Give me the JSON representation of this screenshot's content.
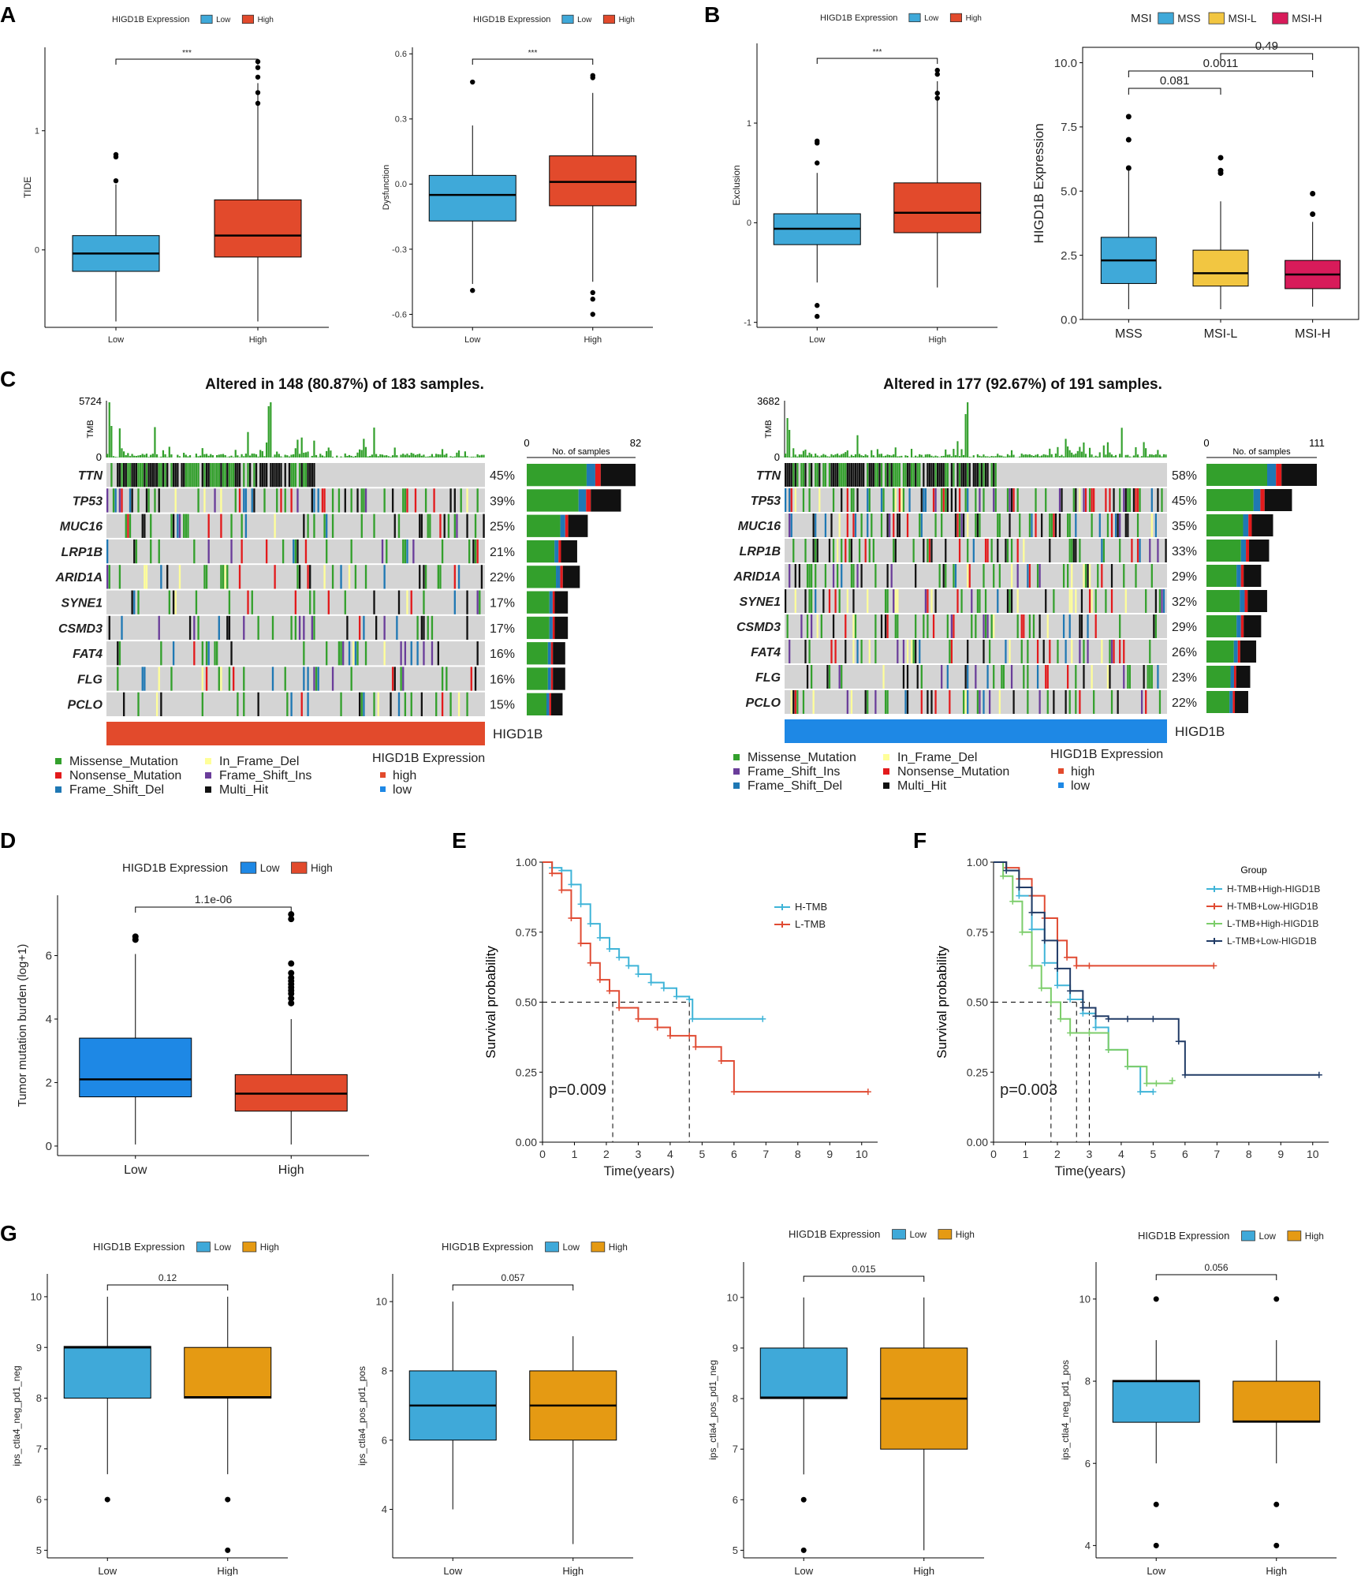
{
  "panel_labels": [
    "A",
    "B",
    "C",
    "D",
    "E",
    "F",
    "G"
  ],
  "colors": {
    "low_blue": "#3fa9d9",
    "high_red": "#e24a2c",
    "msi_l": "#f2c641",
    "msi_h": "#d81b5a",
    "d_blue": "#1e88e5",
    "orange": "#e59a13",
    "missense": "#33a02c",
    "nonsense": "#e31a1c",
    "frameshift_del": "#1f78b4",
    "inframe_del": "#ffff99",
    "frameshift_ins": "#6a3d9a",
    "multi": "#111111",
    "km_blue": "#3fb4d8",
    "km_red": "#e04b33",
    "km_green": "#7ccd6a",
    "km_navy": "#213b66"
  },
  "chart_data": [
    {
      "id": "A1",
      "type": "box",
      "legend_title": "HIGD1B Expression",
      "legend": [
        "Low",
        "High"
      ],
      "categories": [
        "Low",
        "High"
      ],
      "ylabel": "TIDE",
      "yticks": [
        "1",
        "0"
      ],
      "ylim": [
        -0.65,
        1.7
      ],
      "signif": "***",
      "boxes": [
        {
          "q1": -0.18,
          "med": -0.03,
          "q3": 0.12,
          "lo": -0.6,
          "hi": 0.55,
          "out": [
            0.8,
            0.78,
            0.58
          ]
        },
        {
          "q1": -0.06,
          "med": 0.12,
          "q3": 0.42,
          "lo": -0.6,
          "hi": 1.4,
          "out": [
            1.58,
            1.53,
            1.45,
            1.32,
            1.23
          ]
        }
      ]
    },
    {
      "id": "A2",
      "type": "box",
      "legend_title": "HIGD1B Expression",
      "legend": [
        "Low",
        "High"
      ],
      "categories": [
        "Low",
        "High"
      ],
      "ylabel": "Dysfunction",
      "yticks": [
        "0.6",
        "0.3",
        "0.0",
        "-0.3",
        "-0.6"
      ],
      "ylim": [
        -0.66,
        0.63
      ],
      "signif": "***",
      "boxes": [
        {
          "q1": -0.17,
          "med": -0.05,
          "q3": 0.04,
          "lo": -0.46,
          "hi": 0.27,
          "out": [
            0.47,
            -0.49
          ]
        },
        {
          "q1": -0.1,
          "med": 0.01,
          "q3": 0.13,
          "lo": -0.45,
          "hi": 0.42,
          "out": [
            0.5,
            0.49,
            -0.5,
            -0.53,
            -0.6
          ]
        }
      ]
    },
    {
      "id": "B1",
      "type": "box",
      "legend_title": "HIGD1B Expression",
      "legend": [
        "Low",
        "High"
      ],
      "categories": [
        "Low",
        "High"
      ],
      "ylabel": "Exclusion",
      "yticks": [
        "1",
        "0",
        "-1"
      ],
      "ylim": [
        -1.05,
        1.8
      ],
      "signif": "***",
      "boxes": [
        {
          "q1": -0.22,
          "med": -0.06,
          "q3": 0.09,
          "lo": -0.6,
          "hi": 0.5,
          "out": [
            0.82,
            0.8,
            0.6,
            -0.83,
            -0.94
          ]
        },
        {
          "q1": -0.1,
          "med": 0.1,
          "q3": 0.4,
          "lo": -0.65,
          "hi": 1.42,
          "out": [
            1.53,
            1.49,
            1.3,
            1.25
          ]
        }
      ]
    },
    {
      "id": "B2",
      "type": "box",
      "legend_title": "MSI",
      "legend": [
        "MSS",
        "MSI-L",
        "MSI-H"
      ],
      "categories": [
        "MSS",
        "MSI-L",
        "MSI-H"
      ],
      "ylabel": "HIGD1B Expression",
      "yticks": [
        "10.0",
        "7.5",
        "5.0",
        "2.5",
        "0.0"
      ],
      "ylim": [
        0,
        10.6
      ],
      "comparisons": [
        {
          "pair": "MSS-MSI-L",
          "p": "0.081"
        },
        {
          "pair": "MSS-MSI-H",
          "p": "0.0011"
        },
        {
          "pair": "MSI-L-MSI-H",
          "p": "0.49"
        }
      ],
      "boxes": [
        {
          "q1": 1.4,
          "med": 2.3,
          "q3": 3.2,
          "lo": 0.4,
          "hi": 5.8,
          "out": [
            7.9,
            7.0,
            5.9
          ]
        },
        {
          "q1": 1.3,
          "med": 1.8,
          "q3": 2.7,
          "lo": 0.4,
          "hi": 4.6,
          "out": [
            6.3,
            5.8,
            5.7
          ]
        },
        {
          "q1": 1.2,
          "med": 1.75,
          "q3": 2.3,
          "lo": 0.5,
          "hi": 3.8,
          "out": [
            4.9,
            4.1
          ]
        }
      ]
    },
    {
      "id": "C1",
      "type": "oncoplot",
      "title": "Altered in 148 (80.87%) of 183 samples.",
      "tmb_axis_label": "TMB",
      "tmb_max": "5724",
      "tmb_min": "0",
      "count_axis_label": "No. of samples",
      "count_min": "0",
      "count_max": "82",
      "group_label": "HIGD1B",
      "genes": [
        {
          "g": "TTN",
          "pct": "45%",
          "n": 82
        },
        {
          "g": "TP53",
          "pct": "39%",
          "n": 71
        },
        {
          "g": "MUC16",
          "pct": "25%",
          "n": 46
        },
        {
          "g": "LRP1B",
          "pct": "21%",
          "n": 38
        },
        {
          "g": "ARID1A",
          "pct": "22%",
          "n": 40
        },
        {
          "g": "SYNE1",
          "pct": "17%",
          "n": 31
        },
        {
          "g": "CSMD3",
          "pct": "17%",
          "n": 31
        },
        {
          "g": "FAT4",
          "pct": "16%",
          "n": 29
        },
        {
          "g": "FLG",
          "pct": "16%",
          "n": 29
        },
        {
          "g": "PCLO",
          "pct": "15%",
          "n": 27
        }
      ],
      "legend_types": [
        "Missense_Mutation",
        "Nonsense_Mutation",
        "Frame_Shift_Del",
        "In_Frame_Del",
        "Frame_Shift_Ins",
        "Multi_Hit"
      ],
      "expr_legend": {
        "title": "HIGD1B Expression",
        "items": [
          "high",
          "low"
        ]
      }
    },
    {
      "id": "C2",
      "type": "oncoplot",
      "title": "Altered in 177 (92.67%) of 191 samples.",
      "tmb_axis_label": "TMB",
      "tmb_max": "3682",
      "tmb_min": "0",
      "count_axis_label": "No. of samples",
      "count_min": "0",
      "count_max": "111",
      "group_label": "HIGD1B",
      "genes": [
        {
          "g": "TTN",
          "pct": "58%",
          "n": 111
        },
        {
          "g": "TP53",
          "pct": "45%",
          "n": 86
        },
        {
          "g": "MUC16",
          "pct": "35%",
          "n": 67
        },
        {
          "g": "LRP1B",
          "pct": "33%",
          "n": 63
        },
        {
          "g": "ARID1A",
          "pct": "29%",
          "n": 55
        },
        {
          "g": "SYNE1",
          "pct": "32%",
          "n": 61
        },
        {
          "g": "CSMD3",
          "pct": "29%",
          "n": 55
        },
        {
          "g": "FAT4",
          "pct": "26%",
          "n": 50
        },
        {
          "g": "FLG",
          "pct": "23%",
          "n": 44
        },
        {
          "g": "PCLO",
          "pct": "22%",
          "n": 42
        }
      ],
      "legend_types": [
        "Missense_Mutation",
        "Frame_Shift_Ins",
        "Frame_Shift_Del",
        "In_Frame_Del",
        "Nonsense_Mutation",
        "Multi_Hit"
      ],
      "expr_legend": {
        "title": "HIGD1B Expression",
        "items": [
          "high",
          "low"
        ]
      }
    },
    {
      "id": "D",
      "type": "box",
      "legend_title": "HIGD1B Expression",
      "legend": [
        "Low",
        "High"
      ],
      "categories": [
        "Low",
        "High"
      ],
      "ylabel": "Tumor mutation burden (log+1)",
      "yticks": [
        "6",
        "4",
        "2",
        "0"
      ],
      "ylim": [
        -0.3,
        7.9
      ],
      "signif": "1.1e-06",
      "boxes": [
        {
          "q1": 1.55,
          "med": 2.1,
          "q3": 3.4,
          "lo": 0.05,
          "hi": 6.05,
          "out": [
            6.6,
            6.5
          ]
        },
        {
          "q1": 1.1,
          "med": 1.65,
          "q3": 2.25,
          "lo": 0.05,
          "hi": 4.0,
          "out": [
            7.3,
            7.15,
            5.75,
            5.45,
            5.3,
            5.2,
            5.1,
            5.0,
            4.9,
            4.8,
            4.65,
            4.5
          ]
        }
      ]
    },
    {
      "id": "E",
      "type": "line",
      "subtype": "kaplan-meier",
      "xlabel": "Time(years)",
      "ylabel": "Survival probability",
      "xticks": [
        "0",
        "1",
        "2",
        "3",
        "4",
        "5",
        "6",
        "7",
        "8",
        "9",
        "10"
      ],
      "yticks": [
        "1.00",
        "0.75",
        "0.50",
        "0.25",
        "0.00"
      ],
      "xlim": [
        0,
        10.5
      ],
      "ylim": [
        0,
        1
      ],
      "pvalue": "p=0.009",
      "median_times": [
        2.2,
        4.6
      ],
      "series": [
        {
          "name": "H-TMB",
          "x": [
            0,
            0.3,
            0.6,
            0.9,
            1.2,
            1.5,
            1.8,
            2.1,
            2.4,
            2.7,
            3.0,
            3.4,
            3.8,
            4.2,
            4.6,
            4.7,
            6.9
          ],
          "y": [
            1,
            0.98,
            0.97,
            0.92,
            0.85,
            0.78,
            0.73,
            0.69,
            0.66,
            0.63,
            0.6,
            0.57,
            0.55,
            0.52,
            0.51,
            0.44,
            0.44
          ]
        },
        {
          "name": "L-TMB",
          "x": [
            0,
            0.3,
            0.6,
            0.9,
            1.2,
            1.5,
            1.8,
            2.1,
            2.4,
            3.0,
            3.6,
            4.0,
            4.6,
            4.8,
            5.6,
            6.0,
            10.2
          ],
          "y": [
            1,
            0.96,
            0.9,
            0.8,
            0.71,
            0.64,
            0.58,
            0.54,
            0.48,
            0.44,
            0.41,
            0.38,
            0.38,
            0.34,
            0.29,
            0.18,
            0.18
          ]
        }
      ]
    },
    {
      "id": "F",
      "type": "line",
      "subtype": "kaplan-meier",
      "legend_title": "Group",
      "xlabel": "Time(years)",
      "ylabel": "Survival probability",
      "xticks": [
        "0",
        "1",
        "2",
        "3",
        "4",
        "5",
        "6",
        "7",
        "8",
        "9",
        "10"
      ],
      "yticks": [
        "1.00",
        "0.75",
        "0.50",
        "0.25",
        "0.00"
      ],
      "xlim": [
        0,
        10.5
      ],
      "ylim": [
        0,
        1
      ],
      "pvalue": "p=0.003",
      "median_times": [
        1.8,
        2.6,
        3.0
      ],
      "series": [
        {
          "name": "H-TMB+High-HIGD1B",
          "x": [
            0,
            0.4,
            0.8,
            1.2,
            1.6,
            2.0,
            2.4,
            2.8,
            3.2,
            3.6,
            4.2,
            4.6,
            5.0
          ],
          "y": [
            1,
            0.97,
            0.88,
            0.76,
            0.64,
            0.56,
            0.51,
            0.46,
            0.41,
            0.33,
            0.27,
            0.18,
            0.18
          ]
        },
        {
          "name": "H-TMB+Low-HIGD1B",
          "x": [
            0,
            0.4,
            0.8,
            1.2,
            1.6,
            2.0,
            2.3,
            2.6,
            3.0,
            6.9
          ],
          "y": [
            1,
            0.98,
            0.94,
            0.88,
            0.8,
            0.72,
            0.66,
            0.63,
            0.63,
            0.63
          ]
        },
        {
          "name": "L-TMB+High-HIGD1B",
          "x": [
            0,
            0.3,
            0.6,
            0.9,
            1.2,
            1.5,
            1.8,
            2.1,
            2.4,
            3.0,
            3.6,
            4.2,
            4.8,
            5.1,
            5.6
          ],
          "y": [
            1,
            0.95,
            0.86,
            0.75,
            0.63,
            0.55,
            0.5,
            0.44,
            0.39,
            0.39,
            0.33,
            0.27,
            0.21,
            0.21,
            0.22
          ]
        },
        {
          "name": "L-TMB+Low-HIGD1B",
          "x": [
            0,
            0.4,
            0.8,
            1.2,
            1.6,
            2.0,
            2.4,
            2.8,
            3.2,
            3.6,
            4.2,
            5.0,
            5.8,
            6.0,
            10.2
          ],
          "y": [
            1,
            0.97,
            0.91,
            0.82,
            0.72,
            0.62,
            0.54,
            0.48,
            0.45,
            0.44,
            0.44,
            0.44,
            0.36,
            0.24,
            0.24
          ]
        }
      ]
    },
    {
      "id": "G1",
      "type": "box",
      "legend_title": "HIGD1B Expression",
      "legend": [
        "Low",
        "High"
      ],
      "categories": [
        "Low",
        "High"
      ],
      "ylabel": "ips_ctla4_neg_pd1_neg",
      "yticks": [
        "10",
        "9",
        "8",
        "7",
        "6",
        "5"
      ],
      "ylim": [
        4.85,
        10.45
      ],
      "signif": "0.12",
      "boxes": [
        {
          "q1": 8,
          "med": 9,
          "q3": 9.02,
          "lo": 6.5,
          "hi": 10,
          "out": [
            6
          ]
        },
        {
          "q1": 8,
          "med": 8.02,
          "q3": 9,
          "lo": 6.5,
          "hi": 10,
          "out": [
            6,
            5
          ]
        }
      ]
    },
    {
      "id": "G2",
      "type": "box",
      "legend_title": "HIGD1B Expression",
      "legend": [
        "Low",
        "High"
      ],
      "categories": [
        "Low",
        "High"
      ],
      "ylabel": "ips_ctla4_pos_pd1_pos",
      "yticks": [
        "10",
        "8",
        "6",
        "4"
      ],
      "ylim": [
        2.6,
        10.8
      ],
      "signif": "0.057",
      "boxes": [
        {
          "q1": 6,
          "med": 7,
          "q3": 8,
          "lo": 4,
          "hi": 10,
          "out": []
        },
        {
          "q1": 6,
          "med": 7,
          "q3": 8,
          "lo": 3,
          "hi": 9,
          "out": []
        }
      ]
    },
    {
      "id": "G3",
      "type": "box",
      "legend_title": "HIGD1B Expression",
      "legend": [
        "Low",
        "High"
      ],
      "categories": [
        "Low",
        "High"
      ],
      "ylabel": "ips_ctla4_pos_pd1_neg",
      "yticks": [
        "10",
        "9",
        "8",
        "7",
        "6",
        "5"
      ],
      "ylim": [
        4.85,
        10.7
      ],
      "signif": "0.015",
      "boxes": [
        {
          "q1": 8,
          "med": 8.02,
          "q3": 9,
          "lo": 6.5,
          "hi": 10,
          "out": [
            6,
            5
          ]
        },
        {
          "q1": 7,
          "med": 8,
          "q3": 9,
          "lo": 5,
          "hi": 10,
          "out": []
        }
      ]
    },
    {
      "id": "G4",
      "type": "box",
      "legend_title": "HIGD1B Expression",
      "legend": [
        "Low",
        "High"
      ],
      "categories": [
        "Low",
        "High"
      ],
      "ylabel": "ips_ctla4_neg_pd1_pos",
      "yticks": [
        "10",
        "8",
        "6",
        "4"
      ],
      "ylim": [
        3.7,
        10.9
      ],
      "signif": "0.056",
      "boxes": [
        {
          "q1": 7,
          "med": 8,
          "q3": 8.02,
          "lo": 6,
          "hi": 9,
          "out": [
            10,
            5,
            4
          ]
        },
        {
          "q1": 7,
          "med": 7.02,
          "q3": 8,
          "lo": 6,
          "hi": 9,
          "out": [
            10,
            5,
            4
          ]
        }
      ]
    }
  ]
}
